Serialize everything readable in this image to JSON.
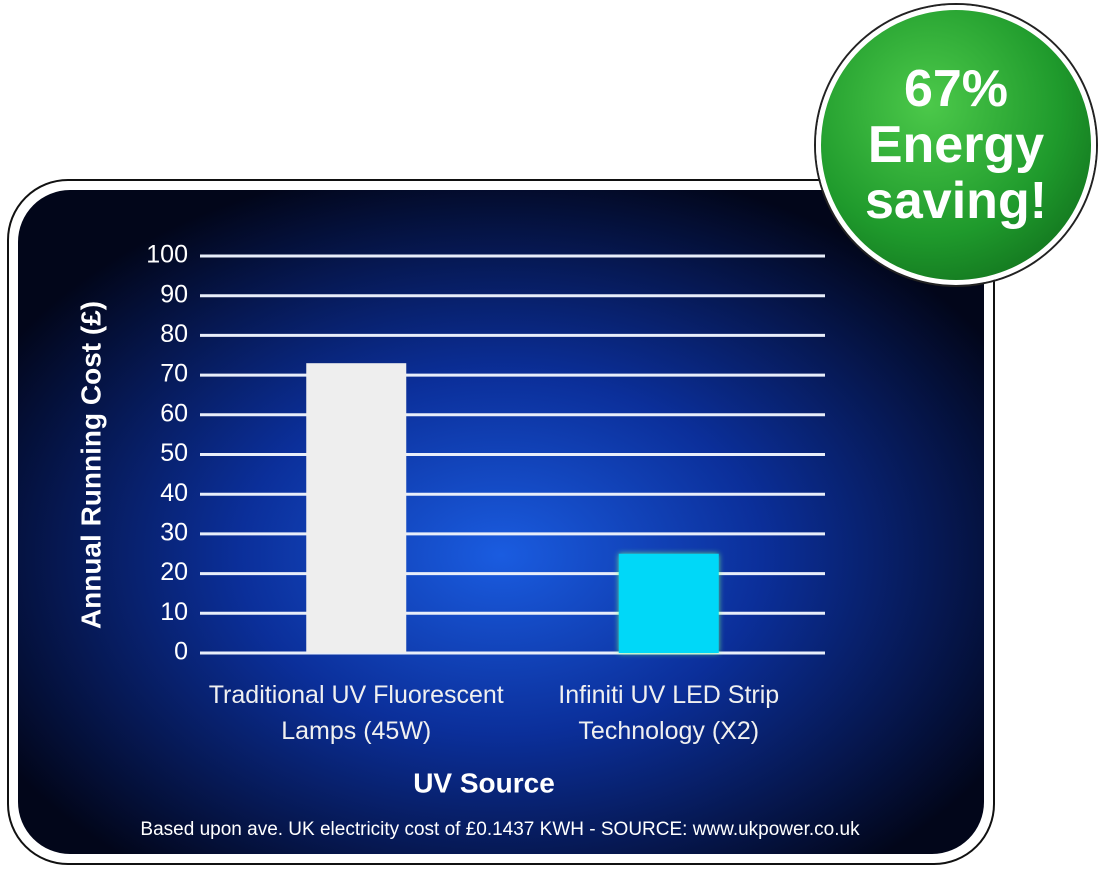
{
  "chart_data": {
    "type": "bar",
    "y_label": "Annual Running Cost (£)",
    "x_label": "UV Source",
    "categories": [
      "Traditional UV Fluorescent Lamps (45W)",
      "Infiniti UV LED Strip Technology (X2)"
    ],
    "values": [
      73,
      25
    ],
    "colors": [
      "#eeeeee",
      "#00d8f8"
    ],
    "ylim": [
      0,
      100
    ],
    "yticks": [
      0,
      10,
      20,
      30,
      40,
      50,
      60,
      70,
      80,
      90,
      100
    ],
    "grid": true,
    "annotation": "67% Energy saving!",
    "footnote": "Based upon ave. UK electricity cost of £0.1437 KWH - SOURCE: www.ukpower.co.uk"
  }
}
